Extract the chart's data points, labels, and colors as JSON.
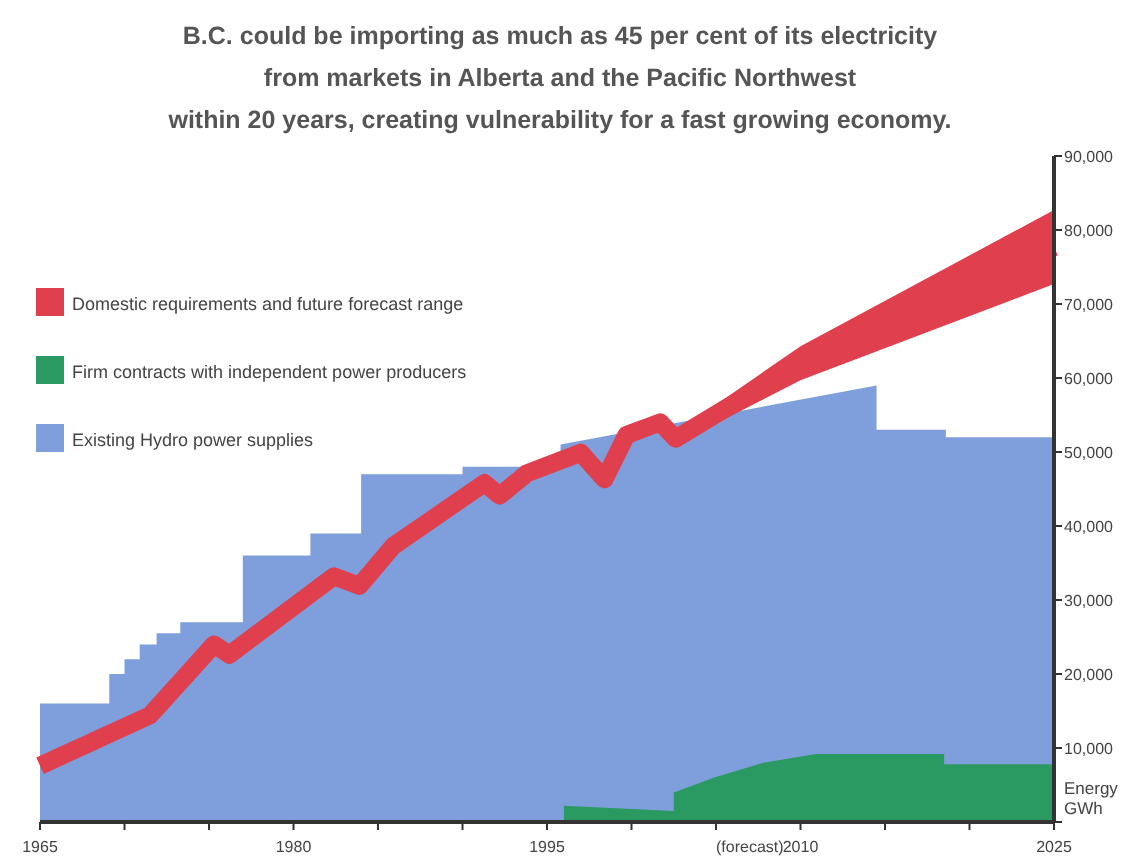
{
  "chart_data": {
    "type": "area",
    "title": "B.C. could be importing as much as 45 per cent of its electricity\nfrom markets in Alberta and the Pacific Northwest\nwithin 20 years, creating vulnerability for a fast growing economy.",
    "ylabel": "Energy\nGWh",
    "annotations": [
      {
        "text": "(forecast)",
        "x": 2007,
        "y": 0
      }
    ],
    "legend": "top left",
    "xlim": [
      1965,
      2025
    ],
    "ylim": [
      0,
      90000
    ],
    "xticks": [
      1965,
      {
        "value": 1970,
        "label": null
      },
      {
        "value": 1975,
        "label": null
      },
      1980,
      {
        "value": 1985,
        "label": null
      },
      {
        "value": 1990,
        "label": null
      },
      1995,
      {
        "value": 2000,
        "label": null
      },
      {
        "value": 2005,
        "label": null
      },
      2010,
      {
        "value": 2015,
        "label": null
      },
      {
        "value": 2020,
        "label": null
      },
      2025
    ],
    "yticks": [
      {
        "value": 0,
        "label": null
      },
      {
        "value": 10000,
        "label": "10,000"
      },
      {
        "value": 20000,
        "label": "20,000"
      },
      {
        "value": 30000,
        "label": "30,000"
      },
      {
        "value": 40000,
        "label": "40,000"
      },
      {
        "value": 50000,
        "label": "50,000"
      },
      {
        "value": 60000,
        "label": "60,000"
      },
      {
        "value": 70000,
        "label": "70,000"
      },
      {
        "value": 80000,
        "label": "80,000"
      },
      {
        "value": 90000,
        "label": "90,000"
      }
    ],
    "series": [
      {
        "name": "Existing Hydro power supplies",
        "color": "#7f9fdc",
        "x": [
          1965,
          1969.1,
          1969.1,
          1970,
          1970,
          1970.9,
          1970.9,
          1971.9,
          1971.9,
          1973.3,
          1973.3,
          1977,
          1977,
          1981,
          1981,
          1984,
          1984,
          1990,
          1990,
          1995.8,
          1995.8,
          2014.5,
          2014.5,
          2018.6,
          2018.6,
          2025
        ],
        "values": [
          16000,
          16000,
          20000,
          20000,
          22000,
          22000,
          24000,
          24000,
          25500,
          25500,
          27000,
          27000,
          36000,
          36000,
          39000,
          39000,
          47000,
          47000,
          48000,
          48000,
          51000,
          59000,
          53000,
          53000,
          52000,
          52000
        ]
      },
      {
        "name": "Firm contracts with independent power producers",
        "color": "#2a9a62",
        "x": [
          1996,
          2002.5,
          2002.5,
          2004.9,
          2007.8,
          2010.9,
          2018.5,
          2018.5,
          2025
        ],
        "values": [
          2200,
          1500,
          4000,
          6000,
          8000,
          9200,
          9200,
          7800,
          7800
        ]
      },
      {
        "name": "Domestic requirements and future forecast range",
        "type": "line",
        "color": "#e0404e",
        "x": [
          1965,
          1971.5,
          1975.3,
          1976.2,
          1982.4,
          1983.9,
          1985.9,
          1991.3,
          1992.2,
          1993.8,
          1997,
          1998.4,
          1999.7,
          2001.7,
          2002.6,
          2010,
          2025
        ],
        "values": [
          7600,
          14400,
          24000,
          22600,
          33200,
          31900,
          37300,
          45800,
          44100,
          47100,
          49900,
          46300,
          52300,
          54000,
          51800,
          62000,
          77700
        ],
        "lower": [
          null,
          null,
          null,
          null,
          null,
          null,
          null,
          null,
          null,
          null,
          null,
          null,
          null,
          null,
          51000,
          59700,
          72700
        ],
        "upper": [
          null,
          null,
          null,
          null,
          null,
          null,
          null,
          null,
          null,
          null,
          null,
          null,
          null,
          null,
          52600,
          64300,
          82700
        ]
      }
    ]
  }
}
